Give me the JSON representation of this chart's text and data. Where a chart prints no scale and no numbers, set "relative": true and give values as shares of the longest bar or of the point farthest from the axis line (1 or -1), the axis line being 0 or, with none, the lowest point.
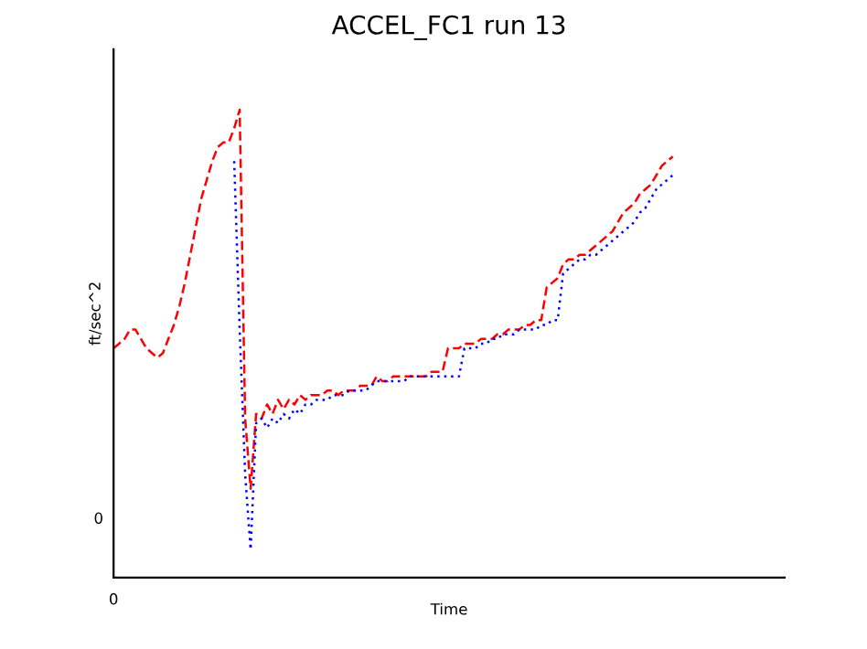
{
  "chart_data": {
    "type": "line",
    "title": "ACCEL_FC1 run 13",
    "xlabel": "Time",
    "ylabel": "ft/sec^2",
    "relative": true,
    "annotations": [
      "0",
      "0"
    ],
    "legend": false,
    "marker": "none",
    "categories": [
      null,
      null,
      null,
      null,
      null,
      null,
      null,
      null,
      null,
      null,
      null,
      null,
      null,
      null,
      null,
      null,
      null,
      null,
      null,
      null,
      null,
      null,
      null,
      null,
      null,
      null,
      null,
      null,
      null,
      null,
      null,
      null,
      null,
      null,
      null,
      null,
      null,
      null,
      null,
      null,
      null,
      null,
      null,
      null,
      null,
      null,
      null,
      null,
      null,
      null,
      null,
      null,
      null,
      null,
      null,
      null,
      null,
      null,
      null,
      null,
      null,
      null,
      null,
      null,
      null,
      null,
      null,
      null,
      null,
      null,
      null,
      null,
      null,
      null,
      null,
      null,
      null,
      null,
      null,
      null,
      null,
      null,
      null,
      null,
      null,
      null,
      null,
      null,
      null,
      null,
      null,
      null,
      null,
      null,
      null,
      null,
      null,
      null,
      null,
      null,
      null,
      null,
      null
    ],
    "series": [
      {
        "color": "#ff0000",
        "line_style": "dashed",
        "values": [
          0.49,
          0.5,
          0.51,
          0.53,
          0.53,
          0.51,
          0.49,
          0.48,
          0.47,
          0.48,
          0.51,
          0.54,
          0.58,
          0.63,
          0.69,
          0.75,
          0.81,
          0.85,
          0.89,
          0.92,
          0.93,
          0.93,
          0.96,
          1.0,
          0.34,
          0.19,
          0.35,
          0.34,
          0.37,
          0.35,
          0.38,
          0.36,
          0.38,
          0.37,
          0.39,
          0.38,
          0.39,
          0.39,
          0.39,
          0.4,
          0.4,
          0.39,
          0.4,
          0.4,
          0.4,
          0.41,
          0.41,
          0.41,
          0.43,
          0.42,
          0.42,
          0.43,
          0.43,
          0.43,
          0.43,
          0.43,
          0.43,
          0.43,
          0.44,
          0.44,
          0.44,
          0.49,
          0.49,
          0.49,
          0.5,
          0.5,
          0.5,
          0.51,
          0.51,
          0.51,
          0.52,
          0.52,
          0.53,
          0.53,
          0.53,
          0.54,
          0.54,
          0.55,
          0.55,
          0.62,
          0.63,
          0.64,
          0.67,
          0.68,
          0.68,
          0.69,
          0.69,
          0.7,
          0.71,
          0.72,
          0.73,
          0.74,
          0.76,
          0.78,
          0.79,
          0.8,
          0.82,
          0.83,
          0.84,
          0.86,
          0.88,
          0.89,
          0.9
        ]
      },
      {
        "color": "#0000ff",
        "line_style": "dotted",
        "values": [
          null,
          null,
          null,
          null,
          null,
          null,
          null,
          null,
          null,
          null,
          null,
          null,
          null,
          null,
          null,
          null,
          null,
          null,
          null,
          null,
          null,
          null,
          0.89,
          0.53,
          0.22,
          0.06,
          0.33,
          0.34,
          0.32,
          0.34,
          0.33,
          0.35,
          0.34,
          0.36,
          0.35,
          0.37,
          0.37,
          0.38,
          0.38,
          0.38,
          0.39,
          0.39,
          0.39,
          0.4,
          0.4,
          0.4,
          0.4,
          0.41,
          0.42,
          0.42,
          0.42,
          0.42,
          0.42,
          0.42,
          0.43,
          0.43,
          0.43,
          0.43,
          0.43,
          0.43,
          0.43,
          0.43,
          0.43,
          0.43,
          0.49,
          0.49,
          0.49,
          0.5,
          0.5,
          0.51,
          0.51,
          0.52,
          0.52,
          0.52,
          0.53,
          0.53,
          0.53,
          0.53,
          0.54,
          0.54,
          0.55,
          0.55,
          0.65,
          0.66,
          0.67,
          0.68,
          0.68,
          0.69,
          0.69,
          0.7,
          0.71,
          0.72,
          0.73,
          0.74,
          0.75,
          0.76,
          0.78,
          0.79,
          0.81,
          0.83,
          0.84,
          0.85,
          0.86
        ]
      }
    ]
  }
}
